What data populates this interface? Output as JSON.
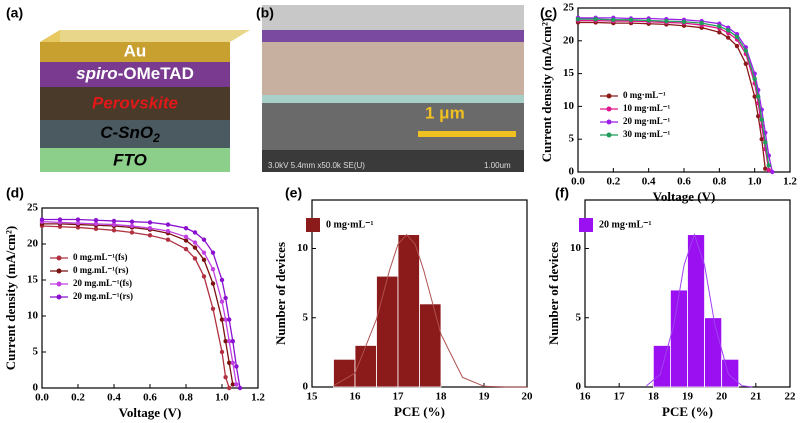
{
  "schematic": {
    "label": "(a)",
    "layers": {
      "au": "Au",
      "spiro_italic": "spiro",
      "spiro_rest": "-OMeTAD",
      "perovskite": "Perovskite",
      "csno": "C-SnO",
      "csno_sub": "2",
      "fto": "FTO"
    }
  },
  "sem_image": {
    "label": "(b)",
    "scale_text": "1 μm",
    "info": "3.0kV 5.4mm x50.0k SE(U)",
    "scale_info": "1.00um"
  },
  "chart_data": [
    {
      "type": "line",
      "label": "(c)",
      "xlabel": "Voltage (V)",
      "ylabel": "Current density (mA/cm²)",
      "x": [
        0,
        0.1,
        0.2,
        0.3,
        0.4,
        0.5,
        0.6,
        0.7,
        0.8,
        0.85,
        0.9,
        0.95,
        1.0,
        1.02,
        1.04,
        1.06,
        1.08,
        1.1
      ],
      "series": [
        {
          "name": "0 mg·mL⁻¹",
          "color": "#8b1a1a",
          "values": [
            22.8,
            22.8,
            22.7,
            22.7,
            22.6,
            22.5,
            22.3,
            22.0,
            21.3,
            20.5,
            19.2,
            16.5,
            11.5,
            8.5,
            5,
            0.5,
            null,
            null
          ]
        },
        {
          "name": "10 mg·mL⁻¹",
          "color": "#e0148c",
          "values": [
            23.1,
            23.1,
            23.0,
            23.0,
            22.9,
            22.8,
            22.7,
            22.4,
            21.9,
            21.2,
            20.2,
            18.0,
            13.5,
            10.5,
            7.0,
            3.5,
            0.3,
            null
          ]
        },
        {
          "name": "20 mg·mL⁻¹",
          "color": "#9b1fe8",
          "values": [
            23.5,
            23.5,
            23.5,
            23.4,
            23.4,
            23.3,
            23.2,
            23.0,
            22.6,
            22.0,
            21.0,
            19.0,
            15.0,
            12.5,
            9.5,
            6.0,
            2.5,
            0
          ]
        },
        {
          "name": "30 mg·mL⁻¹",
          "color": "#1e9e5a",
          "values": [
            23.3,
            23.3,
            23.2,
            23.2,
            23.1,
            23.0,
            22.9,
            22.7,
            22.2,
            21.6,
            20.6,
            18.5,
            14.2,
            11.5,
            8.0,
            4.5,
            1.0,
            null
          ]
        }
      ],
      "xlim": [
        0,
        1.2
      ],
      "xticks": [
        {
          "value": 0,
          "label": "0.0"
        },
        {
          "value": 0.2,
          "label": "0.2"
        },
        {
          "value": 0.4,
          "label": "0.4"
        },
        {
          "value": 0.6,
          "label": "0.6"
        },
        {
          "value": 0.8,
          "label": "0.8"
        },
        {
          "value": 1.0,
          "label": "1.0"
        },
        {
          "value": 1.2,
          "label": "1.2"
        }
      ],
      "ylim": [
        0,
        25
      ],
      "yticks": [
        0,
        5,
        10,
        15,
        20,
        25
      ],
      "legend": "lower left"
    },
    {
      "type": "line",
      "label": "(d)",
      "xlabel": "Voltage (V)",
      "ylabel": "Current density (mA/cm²)",
      "x": [
        0,
        0.1,
        0.2,
        0.3,
        0.4,
        0.5,
        0.6,
        0.7,
        0.8,
        0.85,
        0.9,
        0.95,
        1.0,
        1.02,
        1.04,
        1.06,
        1.08,
        1.1
      ],
      "series": [
        {
          "name": "0 mg.mL⁻¹(fs)",
          "color": "#b03040",
          "values": [
            22.5,
            22.4,
            22.3,
            22.1,
            21.9,
            21.6,
            21.2,
            20.6,
            19.3,
            18.0,
            15.5,
            11.0,
            5.0,
            1.5,
            0,
            null,
            null,
            null
          ]
        },
        {
          "name": "0 mg.mL⁻¹(rs)",
          "color": "#7a1010",
          "values": [
            22.8,
            22.8,
            22.7,
            22.6,
            22.5,
            22.3,
            22.0,
            21.5,
            20.5,
            19.5,
            17.8,
            14.5,
            9.5,
            6.5,
            3.5,
            0.5,
            null,
            null
          ]
        },
        {
          "name": "20 mg.mL⁻¹(fs)",
          "color": "#c040e0",
          "values": [
            23.1,
            23.0,
            22.9,
            22.8,
            22.7,
            22.5,
            22.2,
            21.8,
            21.0,
            20.2,
            18.8,
            16.5,
            12.0,
            9.5,
            6.5,
            3.5,
            0.5,
            null
          ]
        },
        {
          "name": "20 mg.mL⁻¹(rs)",
          "color": "#8a10d0",
          "values": [
            23.4,
            23.4,
            23.4,
            23.3,
            23.2,
            23.1,
            23.0,
            22.7,
            22.2,
            21.6,
            20.6,
            18.8,
            15.0,
            12.5,
            9.5,
            6.5,
            3.0,
            0
          ]
        }
      ],
      "xlim": [
        0,
        1.2
      ],
      "xticks": [
        {
          "value": 0,
          "label": "0.0"
        },
        {
          "value": 0.2,
          "label": "0.2"
        },
        {
          "value": 0.4,
          "label": "0.4"
        },
        {
          "value": 0.6,
          "label": "0.6"
        },
        {
          "value": 0.8,
          "label": "0.8"
        },
        {
          "value": 1.0,
          "label": "1.0"
        },
        {
          "value": 1.2,
          "label": "1.2"
        }
      ],
      "ylim": [
        0,
        25
      ],
      "yticks": [
        0,
        5,
        10,
        15,
        20,
        25
      ],
      "legend": "center left"
    },
    {
      "type": "histogram",
      "label": "(e)",
      "xlabel": "PCE (%)",
      "ylabel": "Number of devices",
      "bins": [
        15.5,
        16,
        16.5,
        17,
        17.5,
        18
      ],
      "values": [
        2,
        3,
        8,
        11,
        6
      ],
      "name": "0 mg·mL⁻¹",
      "color": "#8b1a1a",
      "fit": {
        "color": "#b05050",
        "x": [
          15.5,
          16,
          16.5,
          16.8,
          17,
          17.2,
          17.4,
          17.6,
          18,
          18.5,
          19,
          19.5,
          20
        ],
        "values": [
          0.09,
          1.0,
          4.9,
          8.4,
          10.3,
          11,
          10.3,
          8.4,
          3.8,
          0.7,
          0.05,
          0,
          0
        ]
      },
      "xlim": [
        15,
        20
      ],
      "xticks": [
        15,
        16,
        17,
        18,
        19,
        20
      ],
      "ylim": [
        0,
        13.5
      ],
      "yticks": [
        0,
        5,
        10
      ],
      "legend": "upper left"
    },
    {
      "type": "histogram",
      "label": "(f)",
      "xlabel": "PCE (%)",
      "ylabel": "Number of devices",
      "bins": [
        18,
        18.5,
        19,
        19.5,
        20,
        20.5
      ],
      "values": [
        3,
        7,
        11,
        5,
        2
      ],
      "name": "20 mg·mL⁻¹",
      "color": "#9b10f0",
      "fit": {
        "color": "#a040f0",
        "x": [
          17.8,
          18.2,
          18.6,
          18.9,
          19.2,
          19.5,
          19.8,
          20.2,
          20.6,
          20.9
        ],
        "values": [
          0.09,
          0.9,
          4.5,
          8.8,
          11,
          8.8,
          4.5,
          0.9,
          0.09,
          0
        ]
      },
      "xlim": [
        16,
        22
      ],
      "xticks": [
        16,
        17,
        18,
        19,
        20,
        21,
        22
      ],
      "ylim": [
        0,
        13.5
      ],
      "yticks": [
        0,
        5,
        10
      ],
      "legend": "upper left"
    }
  ]
}
